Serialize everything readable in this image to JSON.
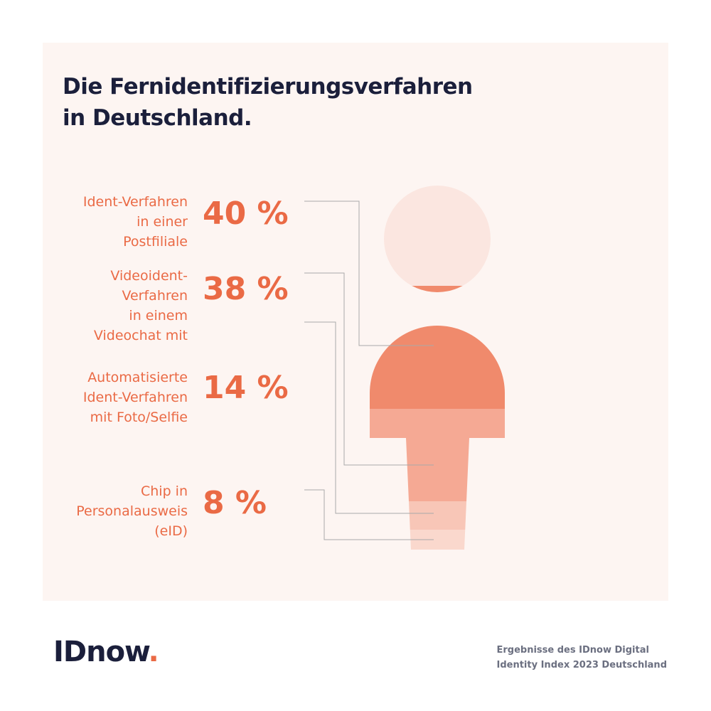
{
  "title_lines": [
    "Die Fernidentifizierungsverfahren",
    "in Deutschland."
  ],
  "chart_data": {
    "type": "bar",
    "title": "Die Fernidentifizierungsverfahren in Deutschland.",
    "categories": [
      "Ident-Verfahren in einer Postfiliale",
      "Videoident-Verfahren in einem Videochat mit",
      "Automatisierte Ident-Verfahren mit Foto/Selfie",
      "Chip in Personalausweis (eID)"
    ],
    "values": [
      40,
      38,
      14,
      8
    ],
    "unit": "%",
    "items": [
      {
        "label_lines": [
          "Ident-Verfahren",
          "in einer",
          "Postfiliale"
        ],
        "value_label": "40 %",
        "value": 40,
        "color": "#f08a6c"
      },
      {
        "label_lines": [
          "Videoident-",
          "Verfahren",
          "in einem",
          "Videochat mit"
        ],
        "value_label": "38 %",
        "value": 38,
        "color": "#f5a994"
      },
      {
        "label_lines": [
          "Automatisierte",
          "Ident-Verfahren",
          "mit Foto/Selfie"
        ],
        "value_label": "14 %",
        "value": 14,
        "color": "#f8c6b7"
      },
      {
        "label_lines": [
          "Chip in",
          "Personalausweis",
          "(eID)"
        ],
        "value_label": "8 %",
        "value": 8,
        "color": "#fad8cd"
      }
    ],
    "head_color": "#fbe6e0"
  },
  "logo": {
    "text": "IDnow",
    "dot": ".",
    "dot_color": "#ea6a45"
  },
  "source_lines": [
    "Ergebnisse des IDnow Digital",
    "Identity Index 2023 Deutschland"
  ],
  "colors": {
    "accent": "#ea6a45",
    "title": "#1b1f3b",
    "background": "#fdf5f2"
  }
}
